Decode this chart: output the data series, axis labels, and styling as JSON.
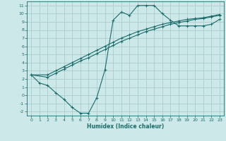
{
  "xlabel": "Humidex (Indice chaleur)",
  "bg_color": "#cce8e8",
  "grid_color": "#aacccc",
  "line_color": "#1a6b6b",
  "xlim": [
    -0.5,
    23.5
  ],
  "ylim": [
    -2.5,
    11.5
  ],
  "xticks": [
    0,
    1,
    2,
    3,
    4,
    5,
    6,
    7,
    8,
    9,
    10,
    11,
    12,
    13,
    14,
    15,
    16,
    17,
    18,
    19,
    20,
    21,
    22,
    23
  ],
  "yticks": [
    -2,
    -1,
    0,
    1,
    2,
    3,
    4,
    5,
    6,
    7,
    8,
    9,
    10,
    11
  ],
  "line1_x": [
    0,
    1,
    2,
    3,
    4,
    5,
    6,
    7,
    8,
    9,
    10,
    11,
    12,
    13,
    14,
    15,
    16,
    17,
    18,
    19,
    20,
    21,
    22,
    23
  ],
  "line1_y": [
    2.5,
    1.5,
    1.2,
    0.3,
    -0.5,
    -1.5,
    -2.2,
    -2.2,
    -0.3,
    3.1,
    9.2,
    10.2,
    9.8,
    11.0,
    11.0,
    11.0,
    10.0,
    9.2,
    8.5,
    8.5,
    8.5,
    8.5,
    8.7,
    9.3
  ],
  "line2_x": [
    0,
    2,
    3,
    4,
    5,
    6,
    7,
    8,
    9,
    10,
    11,
    12,
    13,
    14,
    15,
    16,
    17,
    18,
    19,
    20,
    21,
    22,
    23
  ],
  "line2_y": [
    2.5,
    2.2,
    2.7,
    3.2,
    3.7,
    4.2,
    4.6,
    5.1,
    5.6,
    6.1,
    6.6,
    7.0,
    7.4,
    7.8,
    8.1,
    8.4,
    8.7,
    8.9,
    9.1,
    9.3,
    9.4,
    9.6,
    9.8
  ],
  "line3_x": [
    0,
    2,
    3,
    4,
    5,
    6,
    7,
    8,
    9,
    10,
    11,
    12,
    13,
    14,
    15,
    16,
    17,
    18,
    19,
    20,
    21,
    22,
    23
  ],
  "line3_y": [
    2.5,
    2.5,
    3.0,
    3.5,
    4.0,
    4.5,
    5.0,
    5.5,
    6.0,
    6.5,
    7.0,
    7.4,
    7.8,
    8.1,
    8.4,
    8.7,
    8.9,
    9.1,
    9.3,
    9.4,
    9.5,
    9.7,
    9.9
  ]
}
